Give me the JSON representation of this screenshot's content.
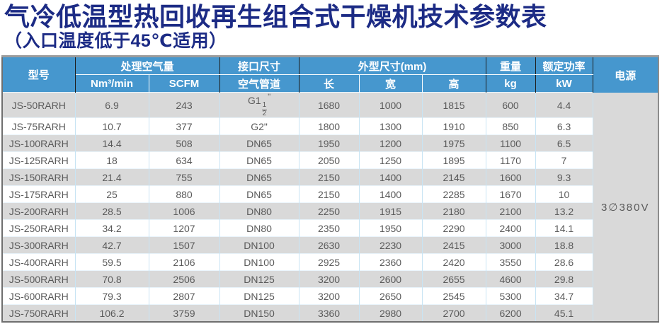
{
  "page": {
    "title": "气冷低温型热回收再生组合式干燥机技术参数表",
    "subtitle": "（入口温度低于45℃适用）"
  },
  "colors": {
    "title_navy": "#1c2b85",
    "header_blue": "#4697ce",
    "row_gray": "#d9d9d9",
    "row_white": "#ffffff",
    "cell_text": "#5a5a5a"
  },
  "table": {
    "headers": {
      "model": "型号",
      "air_volume": "处理空气量",
      "nm3": "Nm³/min",
      "scfm": "SCFM",
      "port_size": "接口尺寸",
      "air_pipe": "空气管道",
      "dimensions": "外型尺寸(mm)",
      "length": "长",
      "width": "宽",
      "height": "高",
      "weight": "重量",
      "kg": "kg",
      "rated_power": "额定功率",
      "kw": "kW",
      "power_supply": "电源"
    },
    "power_supply_value": "3∅380V",
    "rows": [
      {
        "model": "JS-50RARH",
        "nm3": "6.9",
        "scfm": "243",
        "pipe": {
          "pre": "G1",
          "num": "1",
          "den": "2",
          "suf": "\""
        },
        "len": "1680",
        "wid": "1000",
        "hei": "1815",
        "kg": "600",
        "kw": "4.4"
      },
      {
        "model": "JS-75RARH",
        "nm3": "10.7",
        "scfm": "377",
        "pipe": "G2\"",
        "len": "1800",
        "wid": "1300",
        "hei": "1910",
        "kg": "850",
        "kw": "6.3"
      },
      {
        "model": "JS-100RARH",
        "nm3": "14.4",
        "scfm": "508",
        "pipe": "DN65",
        "len": "1950",
        "wid": "1200",
        "hei": "1975",
        "kg": "1100",
        "kw": "6.5"
      },
      {
        "model": "JS-125RARH",
        "nm3": "18",
        "scfm": "634",
        "pipe": "DN65",
        "len": "2050",
        "wid": "1250",
        "hei": "1895",
        "kg": "1170",
        "kw": "7"
      },
      {
        "model": "JS-150RARH",
        "nm3": "21.4",
        "scfm": "755",
        "pipe": "DN65",
        "len": "2150",
        "wid": "1400",
        "hei": "2145",
        "kg": "1600",
        "kw": "9.3"
      },
      {
        "model": "JS-175RARH",
        "nm3": "25",
        "scfm": "880",
        "pipe": "DN65",
        "len": "2150",
        "wid": "1400",
        "hei": "2285",
        "kg": "1670",
        "kw": "10"
      },
      {
        "model": "JS-200RARH",
        "nm3": "28.5",
        "scfm": "1006",
        "pipe": "DN80",
        "len": "2250",
        "wid": "1915",
        "hei": "2180",
        "kg": "2100",
        "kw": "13.2"
      },
      {
        "model": "JS-250RARH",
        "nm3": "34.2",
        "scfm": "1207",
        "pipe": "DN80",
        "len": "2350",
        "wid": "1950",
        "hei": "2290",
        "kg": "2400",
        "kw": "14.1"
      },
      {
        "model": "JS-300RARH",
        "nm3": "42.7",
        "scfm": "1507",
        "pipe": "DN100",
        "len": "2630",
        "wid": "2230",
        "hei": "2415",
        "kg": "3000",
        "kw": "18.8"
      },
      {
        "model": "JS-400RARH",
        "nm3": "59.5",
        "scfm": "2106",
        "pipe": "DN100",
        "len": "2925",
        "wid": "2360",
        "hei": "2420",
        "kg": "3550",
        "kw": "28.6"
      },
      {
        "model": "JS-500RARH",
        "nm3": "70.8",
        "scfm": "2506",
        "pipe": "DN125",
        "len": "3200",
        "wid": "2600",
        "hei": "2655",
        "kg": "4600",
        "kw": "29.8"
      },
      {
        "model": "JS-600RARH",
        "nm3": "79.3",
        "scfm": "2807",
        "pipe": "DN125",
        "len": "3200",
        "wid": "2650",
        "hei": "2545",
        "kg": "5300",
        "kw": "34.7"
      },
      {
        "model": "JS-750RARH",
        "nm3": "106.2",
        "scfm": "3759",
        "pipe": "DN150",
        "len": "3360",
        "wid": "2980",
        "hei": "2700",
        "kg": "6200",
        "kw": "45.1"
      }
    ]
  }
}
